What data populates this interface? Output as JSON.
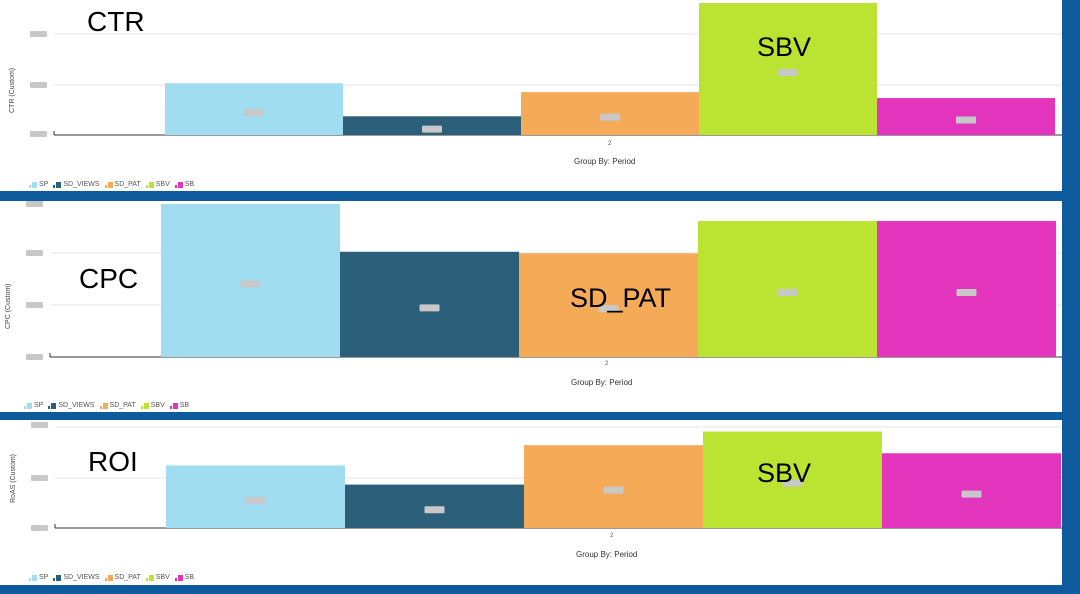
{
  "colors": {
    "SP": "#a0ddf0",
    "SD_VIEWS": "#2b5f7a",
    "SD_PAT": "#f5aa58",
    "SBV": "#bbe332",
    "SB": "#e334be",
    "frame": "#0d5a9c",
    "grid": "#e6e6e6",
    "redaction": "#c8c8c8"
  },
  "legend": [
    "SP",
    "SD_VIEWS",
    "SD_PAT",
    "SBV",
    "SB"
  ],
  "chart_data": [
    {
      "type": "bar",
      "title": "CTR",
      "ylabel": "CTR (Custom)",
      "xlabel": "Group By: Period",
      "categories": [
        "2"
      ],
      "series": [
        {
          "name": "SP",
          "values": [
            1.05
          ]
        },
        {
          "name": "SD_VIEWS",
          "values": [
            0.38
          ]
        },
        {
          "name": "SD_PAT",
          "values": [
            0.87
          ]
        },
        {
          "name": "SBV",
          "values": [
            2.68
          ]
        },
        {
          "name": "SB",
          "values": [
            0.75
          ]
        }
      ],
      "ylim": [
        0,
        2.7
      ],
      "annotation": "SBV",
      "tick_labels_redacted": true
    },
    {
      "type": "bar",
      "title": "CPC",
      "ylabel": "CPC (Custom)",
      "xlabel": "Group By: Period",
      "categories": [
        "2"
      ],
      "series": [
        {
          "name": "SP",
          "values": [
            2.98
          ]
        },
        {
          "name": "SD_VIEWS",
          "values": [
            2.05
          ]
        },
        {
          "name": "SD_PAT",
          "values": [
            2.02
          ]
        },
        {
          "name": "SBV",
          "values": [
            2.65
          ]
        },
        {
          "name": "SB",
          "values": [
            2.65
          ]
        }
      ],
      "ylim": [
        0,
        3.0
      ],
      "annotation": "SD_PAT",
      "tick_labels_redacted": true
    },
    {
      "type": "bar",
      "title": "ROI",
      "ylabel": "RoAS (Custom)",
      "xlabel": "Group By: Period",
      "categories": [
        "2"
      ],
      "series": [
        {
          "name": "SP",
          "values": [
            1.24
          ]
        },
        {
          "name": "SD_VIEWS",
          "values": [
            0.86
          ]
        },
        {
          "name": "SD_PAT",
          "values": [
            1.64
          ]
        },
        {
          "name": "SBV",
          "values": [
            1.91
          ]
        },
        {
          "name": "SB",
          "values": [
            1.48
          ]
        }
      ],
      "ylim": [
        0,
        2.0
      ],
      "annotation": "SBV",
      "tick_labels_redacted": true
    }
  ]
}
